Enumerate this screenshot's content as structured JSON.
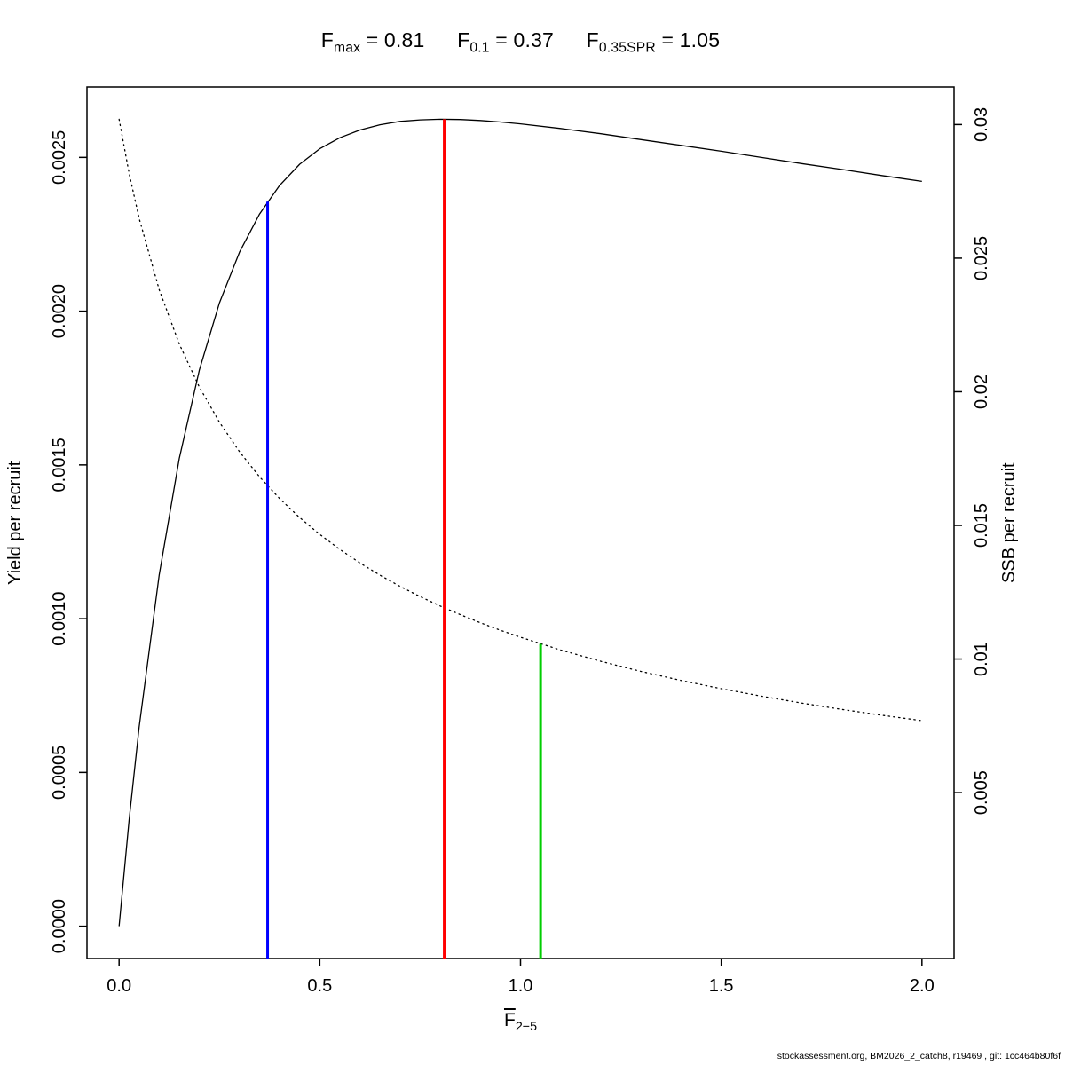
{
  "header": {
    "items": [
      {
        "base": "F",
        "sub": "max",
        "rest": " = 0.81"
      },
      {
        "base": "F",
        "sub": "0.1",
        "rest": " = 0.37"
      },
      {
        "base": "F",
        "sub": "0.35SPR",
        "rest": " = 1.05"
      }
    ]
  },
  "footer": {
    "text": "stockassessment.org, BM2026_2_catch8, r19469 , git: 1cc464b80f6f"
  },
  "chart_data": {
    "type": "line",
    "title": "Fmax = 0.81    F0.1 = 0.37    F0.35SPR = 1.05",
    "reference_points": {
      "F_max": 0.81,
      "F_0.1": 0.37,
      "F_0.35SPR": 1.05
    },
    "xlabel": {
      "base": "F",
      "overbar": true,
      "sub": "2−5"
    },
    "x_axis": {
      "range": [
        -0.08,
        2.08
      ],
      "ticks": [
        0.0,
        0.5,
        1.0,
        1.5,
        2.0
      ],
      "tick_labels": [
        "0.0",
        "0.5",
        "1.0",
        "1.5",
        "2.0"
      ]
    },
    "y_axis_left": {
      "title": "Yield per recruit",
      "range": [
        -0.000105,
        0.002729
      ],
      "ticks": [
        0.0,
        0.0005,
        0.001,
        0.0015,
        0.002,
        0.0025
      ],
      "tick_labels": [
        "0.0000",
        "0.0005",
        "0.0010",
        "0.0015",
        "0.0020",
        "0.0025"
      ]
    },
    "y_axis_right": {
      "title": "SSB per recruit",
      "range": [
        -0.001208,
        0.031408
      ],
      "ticks": [
        0.005,
        0.01,
        0.015,
        0.02,
        0.025,
        0.03
      ],
      "tick_labels": [
        "0.005",
        "0.01",
        "0.015",
        "0.02",
        "0.025",
        "0.03"
      ]
    },
    "x": [
      0,
      0.025,
      0.05,
      0.1,
      0.15,
      0.2,
      0.25,
      0.3,
      0.35,
      0.4,
      0.45,
      0.5,
      0.55,
      0.6,
      0.65,
      0.7,
      0.75,
      0.8,
      0.85,
      0.9,
      0.95,
      1.0,
      1.1,
      1.2,
      1.3,
      1.4,
      1.5,
      1.6,
      1.7,
      1.8,
      1.9,
      2.0
    ],
    "series": [
      {
        "key": "yield-per-recruit",
        "name": "Yield per recruit",
        "axis": "left",
        "line_style": "solid",
        "color": "#000000",
        "values": [
          0.0,
          0.000346,
          0.000648,
          0.001143,
          0.001521,
          0.001808,
          0.002027,
          0.002192,
          0.002316,
          0.002409,
          0.002478,
          0.002528,
          0.002564,
          0.002589,
          0.002606,
          0.002617,
          0.002622,
          0.002624,
          0.002623,
          0.00262,
          0.002615,
          0.002609,
          0.002594,
          0.002577,
          0.002558,
          0.002539,
          0.00252,
          0.0025,
          0.00248,
          0.002461,
          0.002441,
          0.002422
        ]
      },
      {
        "key": "ssb-per-recruit",
        "name": "SSB per recruit",
        "axis": "right",
        "line_style": "dotted",
        "color": "#000000",
        "values": [
          0.0302,
          0.028174,
          0.026488,
          0.02382,
          0.021789,
          0.020178,
          0.01886,
          0.017757,
          0.016818,
          0.016005,
          0.015294,
          0.014664,
          0.014101,
          0.013595,
          0.013137,
          0.012719,
          0.012337,
          0.011984,
          0.011659,
          0.011357,
          0.011076,
          0.010814,
          0.010337,
          0.009915,
          0.009537,
          0.009198,
          0.008889,
          0.008609,
          0.008351,
          0.008114,
          0.007895,
          0.007692
        ]
      }
    ],
    "reference_lines": [
      {
        "key": "f01",
        "label": "F_0.1",
        "x": 0.37,
        "axis": "left",
        "y_top": 0.002356,
        "color": "#0000ff"
      },
      {
        "key": "fmax",
        "label": "F_max",
        "x": 0.81,
        "axis": "left",
        "y_top": 0.002624,
        "color": "#ff0000"
      },
      {
        "key": "f035spr",
        "label": "F_0.35SPR",
        "x": 1.05,
        "axis": "right",
        "y_top": 0.010568,
        "color": "#00cd00"
      }
    ],
    "grid": false,
    "legend": false
  }
}
